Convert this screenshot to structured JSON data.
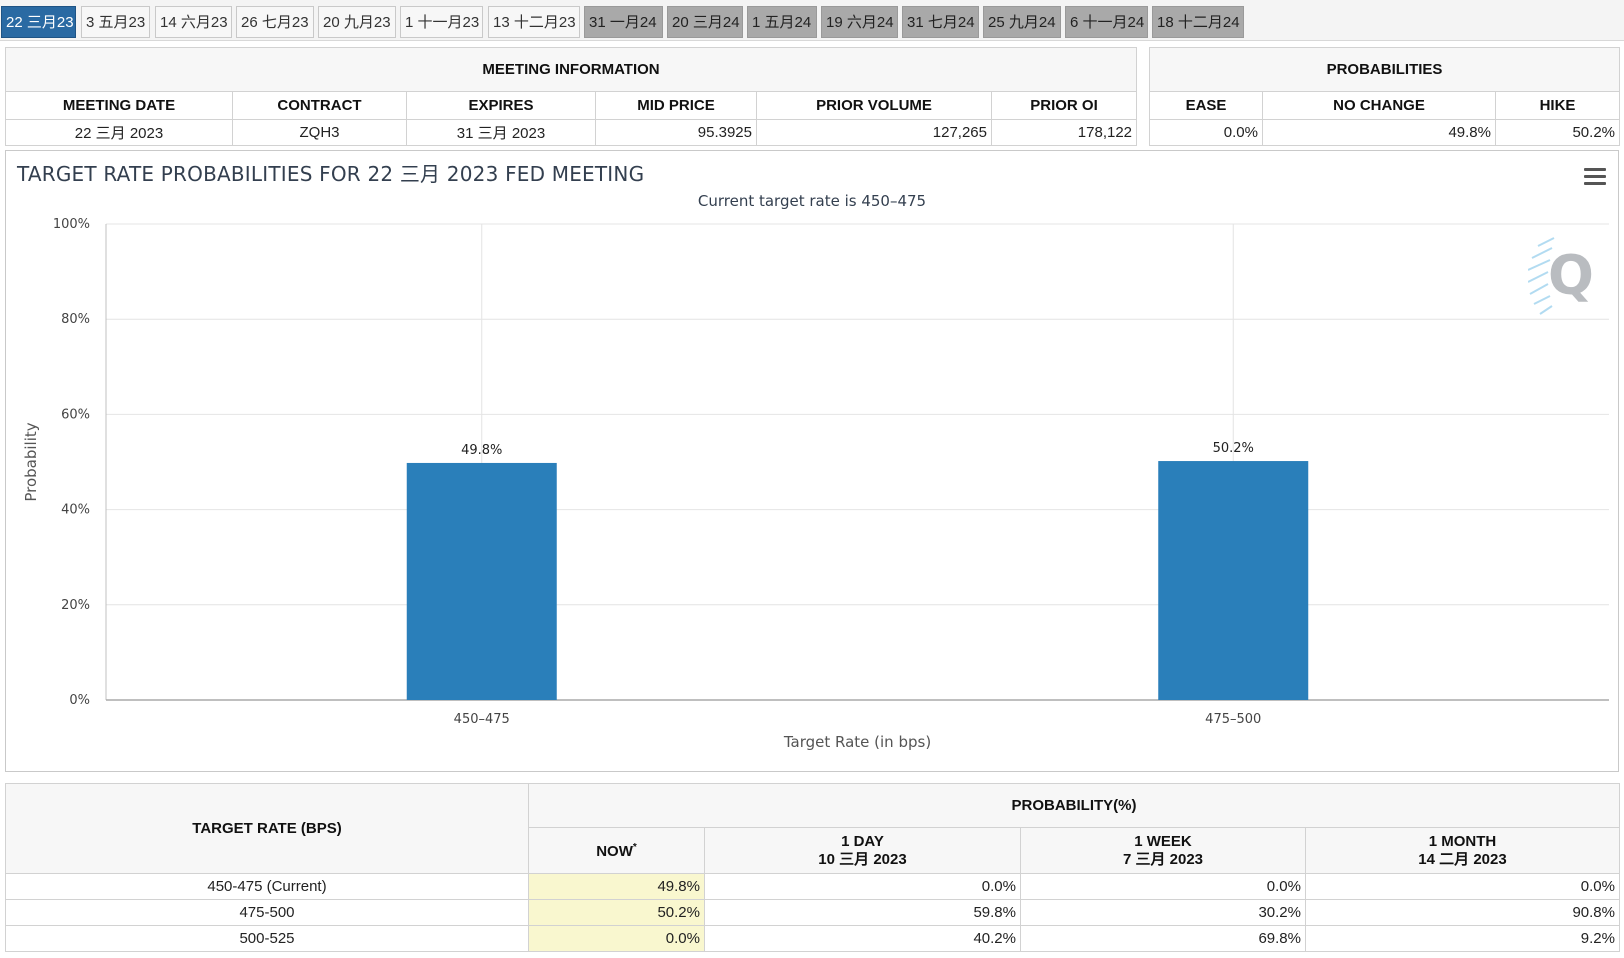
{
  "tabs": [
    {
      "label": "22 三月23",
      "state": "active"
    },
    {
      "label": "3 五月23",
      "state": "normal"
    },
    {
      "label": "14 六月23",
      "state": "normal"
    },
    {
      "label": "26 七月23",
      "state": "normal"
    },
    {
      "label": "20 九月23",
      "state": "normal"
    },
    {
      "label": "1 十一月23",
      "state": "normal"
    },
    {
      "label": "13 十二月23",
      "state": "normal"
    },
    {
      "label": "31 一月24",
      "state": "future"
    },
    {
      "label": "20 三月24",
      "state": "future"
    },
    {
      "label": "1 五月24",
      "state": "future"
    },
    {
      "label": "19 六月24",
      "state": "future"
    },
    {
      "label": "31 七月24",
      "state": "future"
    },
    {
      "label": "25 九月24",
      "state": "future"
    },
    {
      "label": "6 十一月24",
      "state": "future"
    },
    {
      "label": "18 十二月24",
      "state": "future"
    }
  ],
  "meeting_info": {
    "title": "MEETING INFORMATION",
    "headers": [
      "MEETING DATE",
      "CONTRACT",
      "EXPIRES",
      "MID PRICE",
      "PRIOR VOLUME",
      "PRIOR OI"
    ],
    "values": [
      "22 三月 2023",
      "ZQH3",
      "31 三月 2023",
      "95.3925",
      "127,265",
      "178,122"
    ]
  },
  "probabilities": {
    "title": "PROBABILITIES",
    "headers": [
      "EASE",
      "NO CHANGE",
      "HIKE"
    ],
    "values": [
      "0.0%",
      "49.8%",
      "50.2%"
    ]
  },
  "chart_data": {
    "type": "bar",
    "title": "TARGET RATE PROBABILITIES FOR 22 三月 2023 FED MEETING",
    "subtitle": "Current target rate is 450–475",
    "categories": [
      "450–475",
      "475–500"
    ],
    "values": [
      49.8,
      50.2
    ],
    "data_labels": [
      "49.8%",
      "50.2%"
    ],
    "xlabel": "Target Rate (in bps)",
    "ylabel": "Probability",
    "ylim": [
      0,
      100
    ],
    "yticks": [
      "0%",
      "20%",
      "40%",
      "60%",
      "80%",
      "100%"
    ],
    "ytick_values": [
      0,
      20,
      40,
      60,
      80,
      100
    ],
    "grid": true,
    "bar_color": "#2a7fba"
  },
  "bottom_table": {
    "rate_header": "TARGET RATE (BPS)",
    "prob_header": "PROBABILITY(%)",
    "now_label": "NOW",
    "now_mark": "*",
    "columns": [
      {
        "line1": "1 DAY",
        "line2": "10 三月 2023"
      },
      {
        "line1": "1 WEEK",
        "line2": "7 三月 2023"
      },
      {
        "line1": "1 MONTH",
        "line2": "14 二月 2023"
      }
    ],
    "rows": [
      {
        "rate": "450-475 (Current)",
        "now": "49.8%",
        "day": "0.0%",
        "week": "0.0%",
        "month": "0.0%"
      },
      {
        "rate": "475-500",
        "now": "50.2%",
        "day": "59.8%",
        "week": "30.2%",
        "month": "90.8%"
      },
      {
        "rate": "500-525",
        "now": "0.0%",
        "day": "40.2%",
        "week": "69.8%",
        "month": "9.2%"
      }
    ]
  }
}
